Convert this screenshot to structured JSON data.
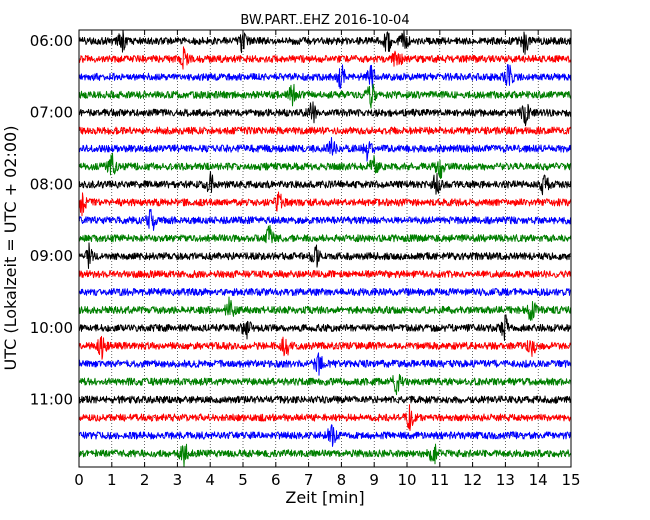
{
  "chart_data": {
    "type": "line",
    "title": "BW.PART..EHZ 2016-10-04",
    "xlabel": "Zeit  [min]",
    "ylabel": "UTC (Lokalzeit = UTC + 02:00)",
    "xlim": [
      0,
      15
    ],
    "x_ticks": [
      "0",
      "1",
      "2",
      "3",
      "4",
      "5",
      "6",
      "7",
      "8",
      "9",
      "10",
      "11",
      "12",
      "13",
      "14",
      "15"
    ],
    "y_tick_labels": [
      "06:00",
      "07:00",
      "08:00",
      "09:00",
      "10:00",
      "11:00"
    ],
    "trace_interval_min": 15,
    "grid": true,
    "trace_colors": [
      "#000000",
      "#ff0000",
      "#0000ff",
      "#008000"
    ],
    "traces": [
      {
        "start": "06:00",
        "color": "#000000",
        "events": [
          1.3,
          5.0,
          9.4,
          9.9,
          13.6
        ]
      },
      {
        "start": "06:15",
        "color": "#ff0000",
        "events": [
          3.2,
          9.7
        ]
      },
      {
        "start": "06:30",
        "color": "#0000ff",
        "events": [
          8.0,
          8.9,
          13.1
        ]
      },
      {
        "start": "06:45",
        "color": "#008000",
        "events": [
          6.5,
          8.9
        ]
      },
      {
        "start": "07:00",
        "color": "#000000",
        "events": [
          7.1,
          13.6
        ]
      },
      {
        "start": "07:15",
        "color": "#ff0000",
        "events": []
      },
      {
        "start": "07:30",
        "color": "#0000ff",
        "events": [
          7.7,
          8.8
        ]
      },
      {
        "start": "07:45",
        "color": "#008000",
        "events": [
          1.0,
          9.0,
          11.0
        ]
      },
      {
        "start": "08:00",
        "color": "#000000",
        "events": [
          4.0,
          10.9,
          14.2
        ]
      },
      {
        "start": "08:15",
        "color": "#ff0000",
        "events": [
          0.1,
          6.1
        ]
      },
      {
        "start": "08:30",
        "color": "#0000ff",
        "events": [
          2.2
        ]
      },
      {
        "start": "08:45",
        "color": "#008000",
        "events": [
          5.8
        ]
      },
      {
        "start": "09:00",
        "color": "#000000",
        "events": [
          0.3,
          7.2
        ]
      },
      {
        "start": "09:15",
        "color": "#ff0000",
        "events": []
      },
      {
        "start": "09:30",
        "color": "#0000ff",
        "events": []
      },
      {
        "start": "09:45",
        "color": "#008000",
        "events": [
          4.6,
          13.8
        ]
      },
      {
        "start": "10:00",
        "color": "#000000",
        "events": [
          5.1,
          13.0
        ]
      },
      {
        "start": "10:15",
        "color": "#ff0000",
        "events": [
          0.7,
          6.3,
          13.8
        ]
      },
      {
        "start": "10:30",
        "color": "#0000ff",
        "events": [
          7.3
        ]
      },
      {
        "start": "10:45",
        "color": "#008000",
        "events": [
          9.7
        ]
      },
      {
        "start": "11:00",
        "color": "#000000",
        "events": []
      },
      {
        "start": "11:15",
        "color": "#ff0000",
        "events": [
          10.1
        ]
      },
      {
        "start": "11:30",
        "color": "#0000ff",
        "events": [
          7.7
        ]
      },
      {
        "start": "11:45",
        "color": "#008000",
        "events": [
          3.2,
          10.8
        ]
      }
    ]
  }
}
